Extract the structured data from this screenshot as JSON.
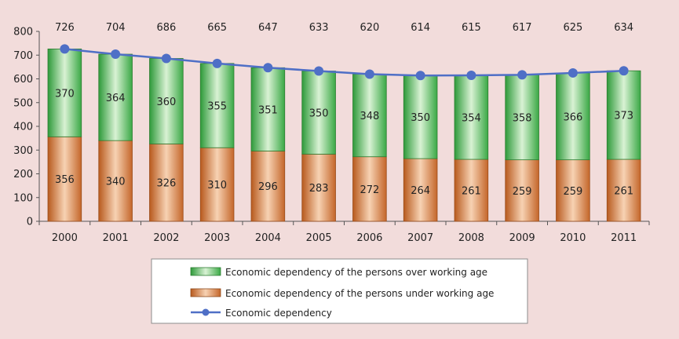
{
  "chart_data": {
    "type": "bar",
    "stacked": true,
    "categories": [
      "2000",
      "2001",
      "2002",
      "2003",
      "2004",
      "2005",
      "2006",
      "2007",
      "2008",
      "2009",
      "2010",
      "2011"
    ],
    "series": [
      {
        "name": "Economic dependency of the persons under working age",
        "kind": "bar",
        "color": "#c96a2a",
        "values": [
          356,
          340,
          326,
          310,
          296,
          283,
          272,
          264,
          261,
          259,
          259,
          261
        ]
      },
      {
        "name": "Economic dependency of the persons over working age",
        "kind": "bar",
        "color": "#3fae49",
        "values": [
          370,
          364,
          360,
          355,
          351,
          350,
          348,
          350,
          354,
          358,
          366,
          373
        ]
      },
      {
        "name": "Economic dependency",
        "kind": "line",
        "color": "#4f6fc6",
        "values": [
          726,
          704,
          686,
          665,
          647,
          633,
          620,
          614,
          615,
          617,
          625,
          634
        ]
      }
    ],
    "legend_order": [
      1,
      0,
      2
    ],
    "ylim": [
      0,
      800
    ],
    "yticks": [
      0,
      100,
      200,
      300,
      400,
      500,
      600,
      700,
      800
    ],
    "grid": false,
    "legend_position": "bottom-center",
    "title": "",
    "xlabel": "",
    "ylabel": ""
  }
}
